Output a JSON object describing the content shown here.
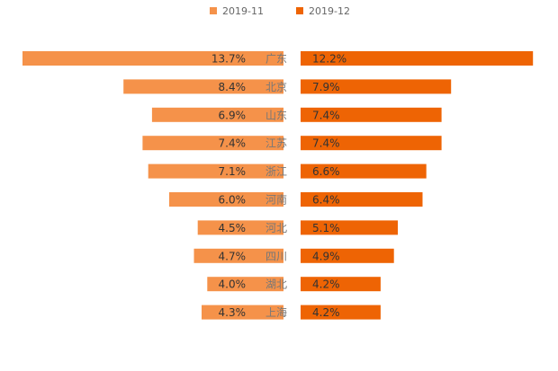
{
  "chart_data": {
    "type": "bar",
    "orientation": "horizontal-butterfly",
    "categories": [
      "广东",
      "北京",
      "山东",
      "江苏",
      "浙江",
      "河南",
      "河北",
      "四川",
      "湖北",
      "上海"
    ],
    "series": [
      {
        "name": "2019-11",
        "color": "#F5924A",
        "values": [
          13.7,
          8.4,
          6.9,
          7.4,
          7.1,
          6.0,
          4.5,
          4.7,
          4.0,
          4.3
        ],
        "labels": [
          "13.7%",
          "8.4%",
          "6.9%",
          "7.4%",
          "7.1%",
          "6.0%",
          "4.5%",
          "4.7%",
          "4.0%",
          "4.3%"
        ]
      },
      {
        "name": "2019-12",
        "color": "#EE6404",
        "values": [
          12.2,
          7.9,
          7.4,
          7.4,
          6.6,
          6.4,
          5.1,
          4.9,
          4.2,
          4.2
        ],
        "labels": [
          "12.2%",
          "7.9%",
          "7.4%",
          "7.4%",
          "6.6%",
          "6.4%",
          "5.1%",
          "4.9%",
          "4.2%",
          "4.2%"
        ]
      }
    ],
    "xlim": [
      0,
      13.7
    ],
    "unit": "%",
    "legend_position": "top-center",
    "grid": false
  }
}
